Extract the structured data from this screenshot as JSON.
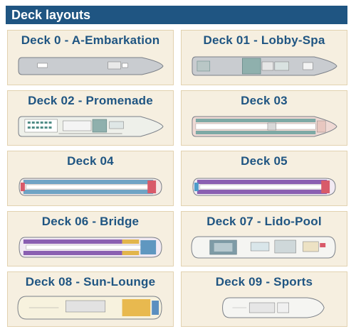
{
  "header": {
    "title": "Deck layouts"
  },
  "decks": [
    {
      "title": "Deck 0 - A-Embarkation",
      "style": "plain"
    },
    {
      "title": "Deck 01 - Lobby-Spa",
      "style": "lobby"
    },
    {
      "title": "Deck 02 - Promenade",
      "style": "promenade"
    },
    {
      "title": "Deck 03",
      "style": "cabins-narrow"
    },
    {
      "title": "Deck 04",
      "style": "cabins"
    },
    {
      "title": "Deck 05",
      "style": "cabins-purple"
    },
    {
      "title": "Deck 06 - Bridge",
      "style": "bridge"
    },
    {
      "title": "Deck 07 - Lido-Pool",
      "style": "lido"
    },
    {
      "title": "Deck 08 - Sun-Lounge",
      "style": "sun"
    },
    {
      "title": "Deck 09 - Sports",
      "style": "sports"
    }
  ],
  "colors": {
    "header_bg": "#1f5582",
    "card_bg": "#f6efe0",
    "card_border": "#e2d2b0",
    "title": "#1f5582"
  }
}
